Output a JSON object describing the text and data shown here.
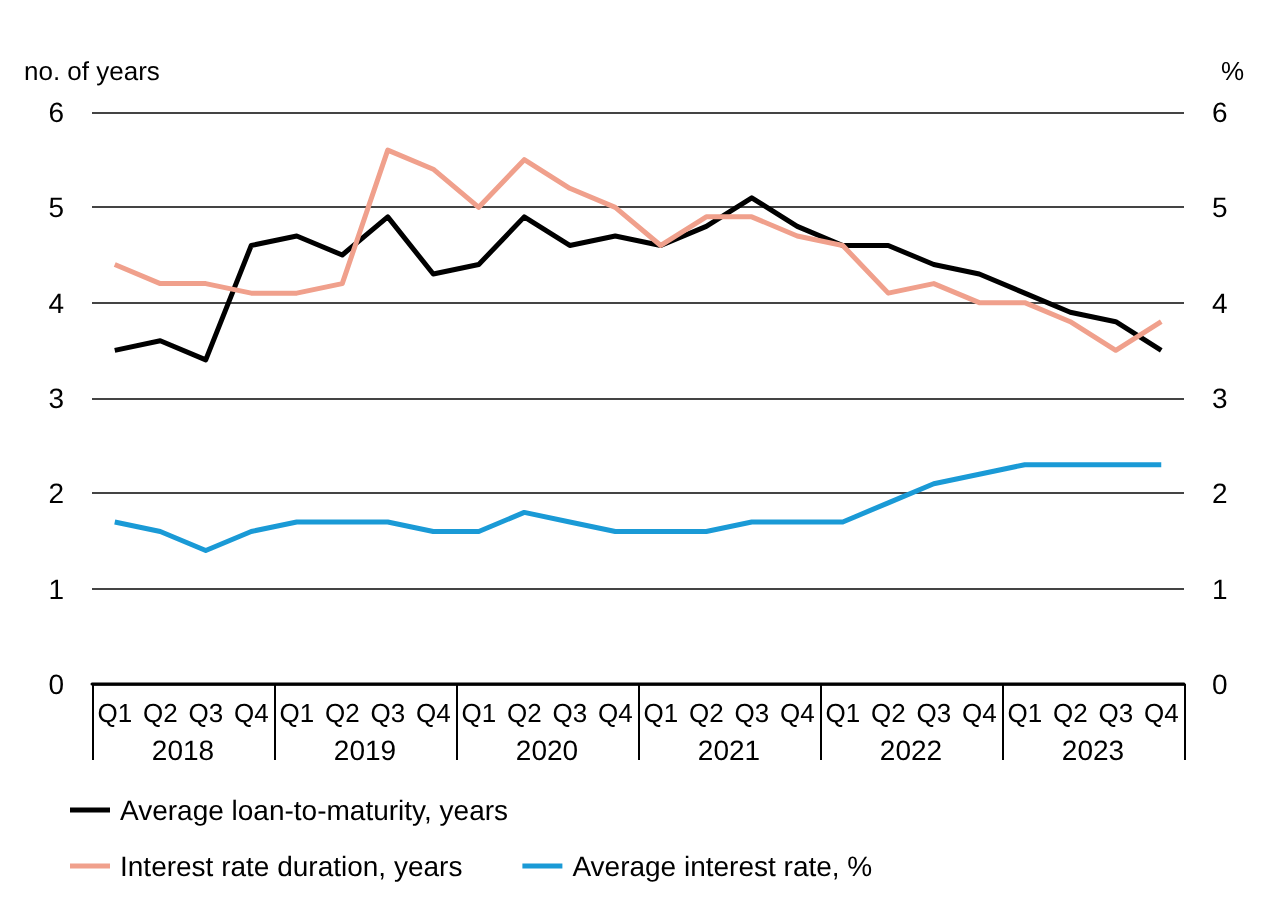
{
  "chart_data": {
    "type": "line",
    "ylabel": "no. of years",
    "y2label": "%",
    "categories": [
      "Q1",
      "Q2",
      "Q3",
      "Q4",
      "Q1",
      "Q2",
      "Q3",
      "Q4",
      "Q1",
      "Q2",
      "Q3",
      "Q4",
      "Q1",
      "Q2",
      "Q3",
      "Q4",
      "Q1",
      "Q2",
      "Q3",
      "Q4",
      "Q1",
      "Q2",
      "Q3",
      "Q4"
    ],
    "annotations": [
      "2018",
      "2019",
      "2020",
      "2021",
      "2022",
      "2023"
    ],
    "series": [
      {
        "name": "Average loan-to-maturity, years",
        "color": "#000000",
        "values": [
          3.5,
          3.6,
          3.4,
          4.6,
          4.7,
          4.5,
          4.9,
          4.3,
          4.4,
          4.9,
          4.6,
          4.7,
          4.6,
          4.8,
          5.1,
          4.8,
          4.6,
          4.6,
          4.4,
          4.3,
          4.1,
          3.9,
          3.8,
          3.5
        ]
      },
      {
        "name": "Interest rate duration, years",
        "color": "#f0a08c",
        "values": [
          4.4,
          4.2,
          4.2,
          4.1,
          4.1,
          4.2,
          5.6,
          5.4,
          5.0,
          5.5,
          5.2,
          5.0,
          4.6,
          4.9,
          4.9,
          4.7,
          4.6,
          4.1,
          4.2,
          4.0,
          4.0,
          3.8,
          3.5,
          3.8
        ]
      },
      {
        "name": "Average interest rate, %",
        "color": "#1a9ad6",
        "axis": "y2",
        "values": [
          1.7,
          1.6,
          1.4,
          1.6,
          1.7,
          1.7,
          1.7,
          1.6,
          1.6,
          1.8,
          1.7,
          1.6,
          1.6,
          1.6,
          1.7,
          1.7,
          1.7,
          1.9,
          2.1,
          2.2,
          2.3,
          2.3,
          2.3,
          2.3
        ]
      }
    ],
    "ylim": [
      0,
      6
    ],
    "yticks": [
      0,
      1,
      2,
      3,
      4,
      5,
      6
    ],
    "y2lim": [
      0,
      6
    ],
    "y2ticks": [
      0,
      1,
      2,
      3,
      4,
      5,
      6
    ],
    "grid": "y",
    "legend": "bottom left",
    "marker": "none",
    "line_style": "solid"
  }
}
